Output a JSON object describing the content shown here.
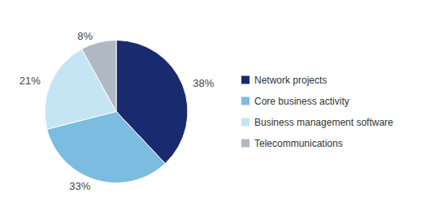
{
  "chart_data": {
    "type": "pie",
    "categories": [
      "Network projects",
      "Core business activity",
      "Business management software",
      "Telecommunications"
    ],
    "values": [
      38,
      33,
      21,
      8
    ],
    "value_labels": [
      "38%",
      "33%",
      "21%",
      "8%"
    ],
    "data_labels": true,
    "colors": [
      "#1a2a6e",
      "#7bbce0",
      "#c5e5f5",
      "#b0b8c4"
    ],
    "legend": "right"
  }
}
